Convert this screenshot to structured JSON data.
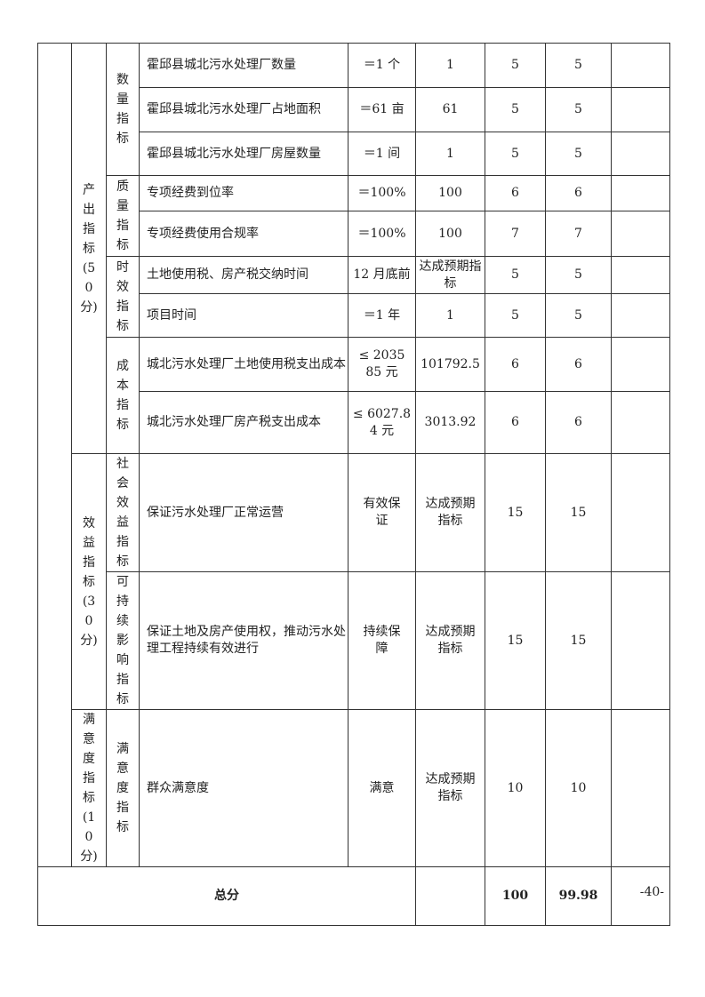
{
  "table": {
    "level1": [
      {
        "label": "产出指标(50分)"
      },
      {
        "label": "效益指标(30分)"
      },
      {
        "label": "满意度指标(10分)"
      }
    ],
    "level2": {
      "quantity": "数量指标",
      "quality": "质量指标",
      "timeliness": "时效指标",
      "cost": "成本指标",
      "social": "社会效益指标",
      "sustainable": "可持续影响指标",
      "satisfaction": "满意度指标"
    },
    "rows": [
      {
        "indicator": "霍邱县城北污水处理厂数量",
        "target": "＝1 个",
        "actual": "1",
        "weight": "5",
        "score": "5",
        "note": ""
      },
      {
        "indicator": "霍邱县城北污水处理厂占地面积",
        "target": "＝61 亩",
        "actual": "61",
        "weight": "5",
        "score": "5",
        "note": ""
      },
      {
        "indicator": "霍邱县城北污水处理厂房屋数量",
        "target": "＝1 间",
        "actual": "1",
        "weight": "5",
        "score": "5",
        "note": ""
      },
      {
        "indicator": "专项经费到位率",
        "target": "＝100%",
        "actual": "100",
        "weight": "6",
        "score": "6",
        "note": ""
      },
      {
        "indicator": "专项经费使用合规率",
        "target": "＝100%",
        "actual": "100",
        "weight": "7",
        "score": "7",
        "note": ""
      },
      {
        "indicator": "土地使用税、房产税交纳时间",
        "target": "12 月底前",
        "actual": "达成预期指标",
        "weight": "5",
        "score": "5",
        "note": ""
      },
      {
        "indicator": "项目时间",
        "target": "＝1 年",
        "actual": "1",
        "weight": "5",
        "score": "5",
        "note": ""
      },
      {
        "indicator": "城北污水处理厂土地使用税支出成本",
        "target": "≤ 203585 元",
        "actual": "101792.5",
        "weight": "6",
        "score": "6",
        "note": ""
      },
      {
        "indicator": "城北污水处理厂房产税支出成本",
        "target": "≤ 6027.84 元",
        "actual": "3013.92",
        "weight": "6",
        "score": "6",
        "note": ""
      },
      {
        "indicator": "保证污水处理厂正常运营",
        "target": "有效保证",
        "actual": "达成预期指标",
        "weight": "15",
        "score": "15",
        "note": ""
      },
      {
        "indicator": "保证土地及房产使用权，推动污水处理工程持续有效进行",
        "target": "持续保障",
        "actual": "达成预期指标",
        "weight": "15",
        "score": "15",
        "note": ""
      },
      {
        "indicator": "群众满意度",
        "target": "满意",
        "actual": "达成预期指标",
        "weight": "10",
        "score": "10",
        "note": ""
      }
    ],
    "total": {
      "label": "总分",
      "actual": "",
      "weight": "100",
      "score": "99.98",
      "note": ""
    }
  },
  "page_number": "-40-"
}
